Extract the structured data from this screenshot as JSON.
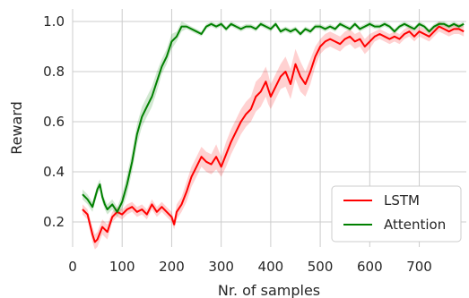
{
  "chart_data": {
    "type": "line",
    "xlabel": "Nr. of samples",
    "ylabel": "Reward",
    "xlim": [
      0,
      795
    ],
    "ylim": [
      0.1,
      1.05
    ],
    "xticks": [
      0,
      100,
      200,
      300,
      400,
      500,
      600,
      700
    ],
    "yticks": [
      0.2,
      0.4,
      0.6,
      0.8,
      1.0
    ],
    "xtick_labels": [
      "0",
      "100",
      "200",
      "300",
      "400",
      "500",
      "600",
      "700"
    ],
    "ytick_labels": [
      "0.2",
      "0.4",
      "0.6",
      "0.8",
      "1.0"
    ],
    "grid": true,
    "legend_position": "lower-right",
    "series": [
      {
        "name": "LSTM",
        "color": "#ff0000",
        "x": [
          20,
          30,
          40,
          45,
          50,
          60,
          70,
          80,
          90,
          100,
          110,
          120,
          130,
          140,
          150,
          160,
          170,
          180,
          190,
          200,
          205,
          210,
          220,
          230,
          240,
          250,
          260,
          270,
          280,
          290,
          300,
          310,
          320,
          330,
          340,
          350,
          360,
          370,
          380,
          390,
          395,
          400,
          410,
          420,
          430,
          440,
          450,
          460,
          470,
          480,
          490,
          500,
          510,
          520,
          530,
          540,
          550,
          560,
          570,
          580,
          590,
          600,
          610,
          620,
          630,
          640,
          650,
          660,
          670,
          680,
          690,
          700,
          710,
          720,
          730,
          740,
          750,
          760,
          770,
          780,
          790
        ],
        "values": [
          0.25,
          0.23,
          0.15,
          0.12,
          0.13,
          0.18,
          0.16,
          0.22,
          0.24,
          0.23,
          0.25,
          0.26,
          0.24,
          0.25,
          0.23,
          0.27,
          0.24,
          0.26,
          0.24,
          0.22,
          0.19,
          0.24,
          0.27,
          0.32,
          0.38,
          0.42,
          0.46,
          0.44,
          0.43,
          0.46,
          0.42,
          0.47,
          0.52,
          0.56,
          0.6,
          0.63,
          0.65,
          0.7,
          0.72,
          0.76,
          0.73,
          0.7,
          0.74,
          0.78,
          0.8,
          0.75,
          0.83,
          0.78,
          0.75,
          0.8,
          0.86,
          0.9,
          0.92,
          0.93,
          0.92,
          0.91,
          0.93,
          0.94,
          0.92,
          0.93,
          0.9,
          0.92,
          0.94,
          0.95,
          0.94,
          0.93,
          0.94,
          0.93,
          0.95,
          0.96,
          0.94,
          0.96,
          0.95,
          0.94,
          0.96,
          0.98,
          0.97,
          0.96,
          0.97,
          0.97,
          0.96
        ],
        "band": [
          0.02,
          0.02,
          0.03,
          0.03,
          0.03,
          0.03,
          0.03,
          0.02,
          0.02,
          0.02,
          0.02,
          0.02,
          0.02,
          0.02,
          0.02,
          0.02,
          0.02,
          0.02,
          0.02,
          0.02,
          0.02,
          0.03,
          0.03,
          0.04,
          0.04,
          0.04,
          0.04,
          0.04,
          0.04,
          0.05,
          0.04,
          0.05,
          0.05,
          0.05,
          0.05,
          0.05,
          0.05,
          0.06,
          0.06,
          0.06,
          0.06,
          0.05,
          0.05,
          0.05,
          0.06,
          0.06,
          0.06,
          0.06,
          0.05,
          0.05,
          0.04,
          0.03,
          0.03,
          0.03,
          0.03,
          0.03,
          0.03,
          0.03,
          0.03,
          0.03,
          0.03,
          0.03,
          0.02,
          0.02,
          0.02,
          0.02,
          0.02,
          0.02,
          0.02,
          0.02,
          0.02,
          0.02,
          0.02,
          0.02,
          0.02,
          0.02,
          0.02,
          0.02,
          0.02,
          0.02,
          0.02
        ]
      },
      {
        "name": "Attention",
        "color": "#008000",
        "x": [
          20,
          30,
          40,
          50,
          55,
          60,
          65,
          70,
          80,
          90,
          100,
          110,
          120,
          130,
          140,
          150,
          160,
          170,
          180,
          190,
          200,
          210,
          220,
          230,
          240,
          250,
          260,
          270,
          280,
          290,
          300,
          310,
          320,
          330,
          340,
          350,
          360,
          370,
          380,
          390,
          400,
          410,
          420,
          430,
          440,
          450,
          460,
          470,
          480,
          490,
          500,
          510,
          520,
          530,
          540,
          550,
          560,
          570,
          580,
          590,
          600,
          610,
          620,
          630,
          640,
          650,
          660,
          670,
          680,
          690,
          700,
          710,
          720,
          730,
          740,
          750,
          760,
          770,
          780,
          790
        ],
        "values": [
          0.31,
          0.29,
          0.26,
          0.33,
          0.35,
          0.3,
          0.27,
          0.25,
          0.27,
          0.24,
          0.28,
          0.35,
          0.44,
          0.55,
          0.62,
          0.66,
          0.7,
          0.76,
          0.82,
          0.86,
          0.92,
          0.94,
          0.98,
          0.98,
          0.97,
          0.96,
          0.95,
          0.98,
          0.99,
          0.98,
          0.99,
          0.97,
          0.99,
          0.98,
          0.97,
          0.98,
          0.98,
          0.97,
          0.99,
          0.98,
          0.97,
          0.99,
          0.96,
          0.97,
          0.96,
          0.97,
          0.95,
          0.97,
          0.96,
          0.98,
          0.98,
          0.97,
          0.98,
          0.97,
          0.99,
          0.98,
          0.97,
          0.99,
          0.97,
          0.98,
          0.99,
          0.98,
          0.98,
          0.99,
          0.98,
          0.96,
          0.98,
          0.99,
          0.98,
          0.97,
          0.99,
          0.98,
          0.96,
          0.98,
          0.99,
          0.99,
          0.98,
          0.99,
          0.98,
          0.99
        ],
        "band": [
          0.02,
          0.02,
          0.02,
          0.02,
          0.02,
          0.02,
          0.02,
          0.02,
          0.02,
          0.02,
          0.03,
          0.04,
          0.04,
          0.04,
          0.04,
          0.04,
          0.04,
          0.04,
          0.03,
          0.03,
          0.03,
          0.02,
          0.02,
          0.01,
          0.01,
          0.01,
          0.01,
          0.01,
          0.01,
          0.01,
          0.01,
          0.01,
          0.01,
          0.01,
          0.01,
          0.01,
          0.01,
          0.01,
          0.01,
          0.01,
          0.01,
          0.01,
          0.01,
          0.01,
          0.01,
          0.01,
          0.01,
          0.01,
          0.01,
          0.01,
          0.01,
          0.01,
          0.01,
          0.01,
          0.01,
          0.01,
          0.01,
          0.01,
          0.01,
          0.01,
          0.01,
          0.01,
          0.01,
          0.01,
          0.01,
          0.01,
          0.01,
          0.01,
          0.01,
          0.01,
          0.01,
          0.01,
          0.01,
          0.01,
          0.01,
          0.01,
          0.01,
          0.01,
          0.01,
          0.01
        ]
      }
    ]
  }
}
